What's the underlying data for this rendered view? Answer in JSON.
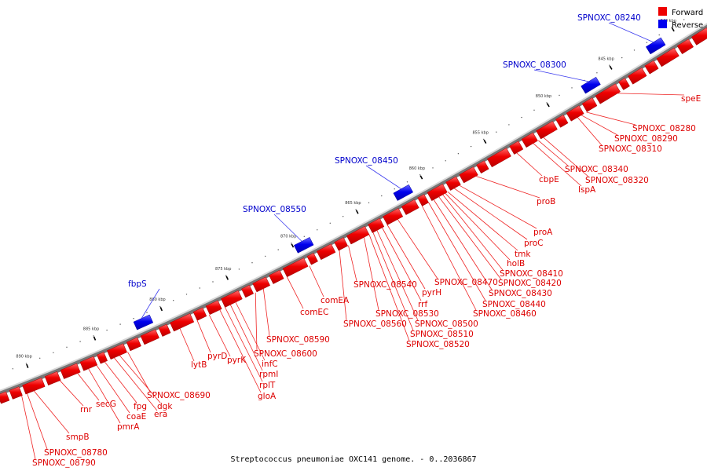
{
  "caption": "Streptococcus pneumoniae OXC141 genome. - 0..2036867",
  "legend": {
    "forward_label": "Forward",
    "reverse_label": "Reverse",
    "forward_color": "#ee0000",
    "reverse_color": "#0000ee"
  },
  "axis": {
    "unit": "kbp",
    "ticks": [
      {
        "kbp": 840,
        "label": "840 kbp"
      },
      {
        "kbp": 845,
        "label": "845 kbp"
      },
      {
        "kbp": 850,
        "label": "850 kbp"
      },
      {
        "kbp": 855,
        "label": "855 kbp"
      },
      {
        "kbp": 860,
        "label": "860 kbp"
      },
      {
        "kbp": 865,
        "label": "865 kbp"
      },
      {
        "kbp": 870,
        "label": "870 kbp"
      },
      {
        "kbp": 875,
        "label": "875 kbp"
      },
      {
        "kbp": 880,
        "label": "880 kbp"
      },
      {
        "kbp": 885,
        "label": "885 kbp"
      },
      {
        "kbp": 890,
        "label": "890 kbp"
      }
    ]
  },
  "reverse_genes": [
    {
      "name": "SPNOXC_08240",
      "kbp": 841.6
    },
    {
      "name": "SPNOXC_08300",
      "kbp": 846.8
    },
    {
      "name": "SPNOXC_08450",
      "kbp": 861.6
    },
    {
      "name": "SPNOXC_08550",
      "kbp": 869.3
    },
    {
      "name": "fbpS",
      "kbp": 881.5
    }
  ],
  "forward_labels": [
    {
      "name": "speE",
      "kbp": 845.5
    },
    {
      "name": "SPNOXC_08280",
      "kbp": 848.0
    },
    {
      "name": "SPNOXC_08290",
      "kbp": 848.4
    },
    {
      "name": "SPNOXC_08310",
      "kbp": 848.7
    },
    {
      "name": "SPNOXC_08340",
      "kbp": 851.8
    },
    {
      "name": "SPNOXC_08320",
      "kbp": 851.4
    },
    {
      "name": "lspA",
      "kbp": 852.2
    },
    {
      "name": "cbpE",
      "kbp": 853.5
    },
    {
      "name": "proB",
      "kbp": 856.7
    },
    {
      "name": "proA",
      "kbp": 858.0
    },
    {
      "name": "proC",
      "kbp": 858.4
    },
    {
      "name": "tmk",
      "kbp": 858.9
    },
    {
      "name": "holB",
      "kbp": 859.1
    },
    {
      "name": "SPNOXC_08410",
      "kbp": 859.3
    },
    {
      "name": "SPNOXC_08420",
      "kbp": 859.6
    },
    {
      "name": "SPNOXC_08430",
      "kbp": 860.0
    },
    {
      "name": "SPNOXC_08440",
      "kbp": 860.4
    },
    {
      "name": "SPNOXC_08460",
      "kbp": 860.9
    },
    {
      "name": "SPNOXC_08470",
      "kbp": 862.8
    },
    {
      "name": "pyrH",
      "kbp": 863.6
    },
    {
      "name": "rrf",
      "kbp": 864.0
    },
    {
      "name": "SPNOXC_08500",
      "kbp": 864.4
    },
    {
      "name": "SPNOXC_08510",
      "kbp": 864.7
    },
    {
      "name": "SPNOXC_08520",
      "kbp": 865.0
    },
    {
      "name": "SPNOXC_08530",
      "kbp": 865.4
    },
    {
      "name": "SPNOXC_08540",
      "kbp": 866.6
    },
    {
      "name": "SPNOXC_08560",
      "kbp": 867.3
    },
    {
      "name": "comEA",
      "kbp": 869.6
    },
    {
      "name": "comEC",
      "kbp": 871.3
    },
    {
      "name": "SPNOXC_08590",
      "kbp": 873.1
    },
    {
      "name": "SPNOXC_08600",
      "kbp": 873.7
    },
    {
      "name": "infC",
      "kbp": 875.2
    },
    {
      "name": "rpmI",
      "kbp": 875.6
    },
    {
      "name": "rplT",
      "kbp": 876.0
    },
    {
      "name": "gloA",
      "kbp": 876.4
    },
    {
      "name": "pyrK",
      "kbp": 877.2
    },
    {
      "name": "pyrD",
      "kbp": 878.1
    },
    {
      "name": "lytB",
      "kbp": 879.4
    },
    {
      "name": "SPNOXC_08690",
      "kbp": 883.3
    },
    {
      "name": "dgk",
      "kbp": 883.9
    },
    {
      "name": "era",
      "kbp": 884.3
    },
    {
      "name": "fpg",
      "kbp": 885.0
    },
    {
      "name": "coaE",
      "kbp": 885.6
    },
    {
      "name": "pmrA",
      "kbp": 886.2
    },
    {
      "name": "secG",
      "kbp": 887.0
    },
    {
      "name": "rnr",
      "kbp": 888.3
    },
    {
      "name": "smpB",
      "kbp": 890.2
    },
    {
      "name": "SPNOXC_08780",
      "kbp": 890.7
    },
    {
      "name": "SPNOXC_08790",
      "kbp": 891.1
    }
  ]
}
